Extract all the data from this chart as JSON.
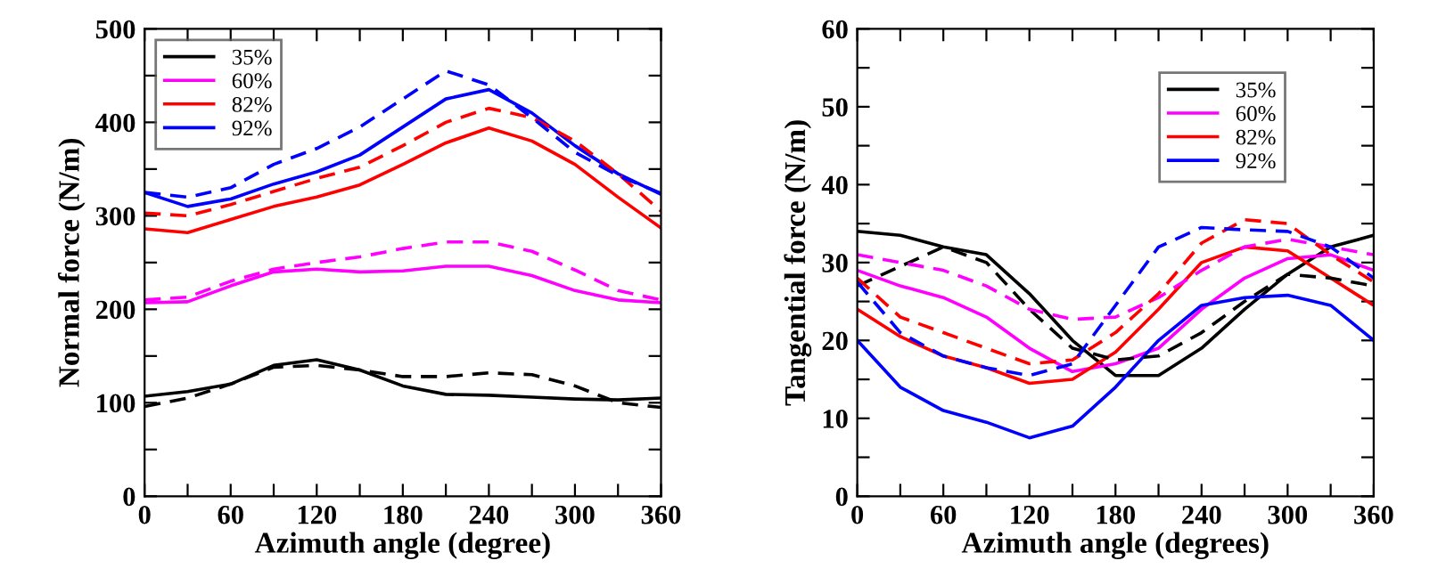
{
  "chart_data": [
    {
      "type": "line",
      "xlabel": "Azimuth angle (degree)",
      "ylabel": "Normal force (N/m)",
      "legend": "top left",
      "xlim": [
        0,
        360
      ],
      "ylim": [
        0,
        500
      ],
      "xticks": [
        0,
        {
          "value": 30,
          "label": null
        },
        60,
        {
          "value": 90,
          "label": null
        },
        120,
        {
          "value": 150,
          "label": null
        },
        180,
        {
          "value": 210,
          "label": null
        },
        240,
        {
          "value": 270,
          "label": null
        },
        300,
        {
          "value": 330,
          "label": null
        },
        360
      ],
      "yticks": [
        0,
        {
          "value": 50,
          "label": null
        },
        100,
        {
          "value": 150,
          "label": null
        },
        200,
        {
          "value": 250,
          "label": null
        },
        300,
        {
          "value": 350,
          "label": null
        },
        400,
        {
          "value": 450,
          "label": null
        },
        500
      ],
      "x": [
        0,
        30,
        60,
        90,
        120,
        150,
        180,
        210,
        240,
        270,
        300,
        330,
        360
      ],
      "series": [
        {
          "name": "35%",
          "color": "#000000",
          "line_style": "solid",
          "values": [
            107,
            112,
            120,
            140,
            146,
            135,
            118,
            109,
            108,
            106,
            104,
            103,
            105
          ]
        },
        {
          "name": "60%",
          "color": "#ff00ff",
          "line_style": "solid",
          "values": [
            207,
            208,
            225,
            240,
            243,
            240,
            241,
            246,
            246,
            236,
            220,
            210,
            207
          ]
        },
        {
          "name": "82%",
          "color": "#ff0000",
          "line_style": "solid",
          "values": [
            286,
            282,
            296,
            310,
            320,
            333,
            355,
            378,
            394,
            380,
            355,
            320,
            287
          ]
        },
        {
          "name": "92%",
          "color": "#0000ff",
          "line_style": "solid",
          "values": [
            325,
            310,
            318,
            334,
            347,
            365,
            395,
            425,
            435,
            410,
            375,
            345,
            323
          ]
        },
        {
          "color": "#000000",
          "line_style": "dashed",
          "values": [
            96,
            105,
            120,
            138,
            140,
            135,
            128,
            128,
            132,
            130,
            118,
            100,
            95
          ]
        },
        {
          "color": "#ff00ff",
          "line_style": "dashed",
          "values": [
            210,
            213,
            230,
            243,
            250,
            256,
            265,
            272,
            272,
            262,
            242,
            220,
            210
          ]
        },
        {
          "color": "#ff0000",
          "line_style": "dashed",
          "values": [
            303,
            300,
            312,
            326,
            340,
            352,
            375,
            400,
            415,
            405,
            380,
            345,
            305
          ]
        },
        {
          "color": "#0000ff",
          "line_style": "dashed",
          "values": [
            325,
            320,
            330,
            355,
            372,
            395,
            425,
            455,
            440,
            405,
            368,
            343,
            324
          ]
        }
      ]
    },
    {
      "type": "line",
      "xlabel": "Azimuth angle (degrees)",
      "ylabel": "Tangential force (N/m)",
      "legend": "top right",
      "xlim": [
        0,
        360
      ],
      "ylim": [
        0,
        60
      ],
      "xticks": [
        0,
        {
          "value": 30,
          "label": null
        },
        60,
        {
          "value": 90,
          "label": null
        },
        120,
        {
          "value": 150,
          "label": null
        },
        180,
        {
          "value": 210,
          "label": null
        },
        240,
        {
          "value": 270,
          "label": null
        },
        300,
        {
          "value": 330,
          "label": null
        },
        360
      ],
      "yticks": [
        0,
        {
          "value": 5,
          "label": null
        },
        10,
        {
          "value": 15,
          "label": null
        },
        20,
        {
          "value": 25,
          "label": null
        },
        30,
        {
          "value": 35,
          "label": null
        },
        40,
        {
          "value": 45,
          "label": null
        },
        50,
        {
          "value": 55,
          "label": null
        },
        60
      ],
      "x": [
        0,
        30,
        60,
        90,
        120,
        150,
        180,
        210,
        240,
        270,
        300,
        330,
        360
      ],
      "series": [
        {
          "name": "35%",
          "color": "#000000",
          "line_style": "solid",
          "values": [
            34,
            33.5,
            32,
            31,
            26,
            20,
            15.5,
            15.5,
            19,
            24,
            28.5,
            32,
            33.5
          ]
        },
        {
          "name": "60%",
          "color": "#ff00ff",
          "line_style": "solid",
          "values": [
            29,
            27,
            25.5,
            23,
            19,
            16,
            17,
            19,
            24,
            28,
            30.5,
            31,
            29
          ]
        },
        {
          "name": "82%",
          "color": "#ff0000",
          "line_style": "solid",
          "values": [
            24,
            20.5,
            18,
            16.5,
            14.5,
            15,
            18.5,
            24,
            30,
            32,
            31.5,
            28,
            24.5
          ]
        },
        {
          "name": "92%",
          "color": "#0000ff",
          "line_style": "solid",
          "values": [
            20,
            14,
            11,
            9.5,
            7.5,
            9,
            14,
            20,
            24.5,
            25.5,
            25.8,
            24.5,
            20
          ]
        },
        {
          "color": "#000000",
          "line_style": "dashed",
          "values": [
            27,
            29.5,
            32,
            30,
            24,
            19,
            17.5,
            18,
            21,
            25,
            28.5,
            28,
            27
          ]
        },
        {
          "color": "#ff00ff",
          "line_style": "dashed",
          "values": [
            31,
            30,
            29,
            27,
            24,
            22.7,
            23,
            25.5,
            29,
            32,
            33,
            32,
            31
          ]
        },
        {
          "color": "#ff0000",
          "line_style": "dashed",
          "values": [
            28,
            23,
            21,
            19,
            17,
            17.5,
            21,
            26,
            32.5,
            35.5,
            35,
            31,
            27.5
          ]
        },
        {
          "color": "#0000ff",
          "line_style": "dashed",
          "values": [
            27.5,
            21,
            18,
            16.5,
            15.5,
            17,
            24.5,
            32,
            34.5,
            34.2,
            34,
            32,
            28
          ]
        }
      ]
    }
  ]
}
